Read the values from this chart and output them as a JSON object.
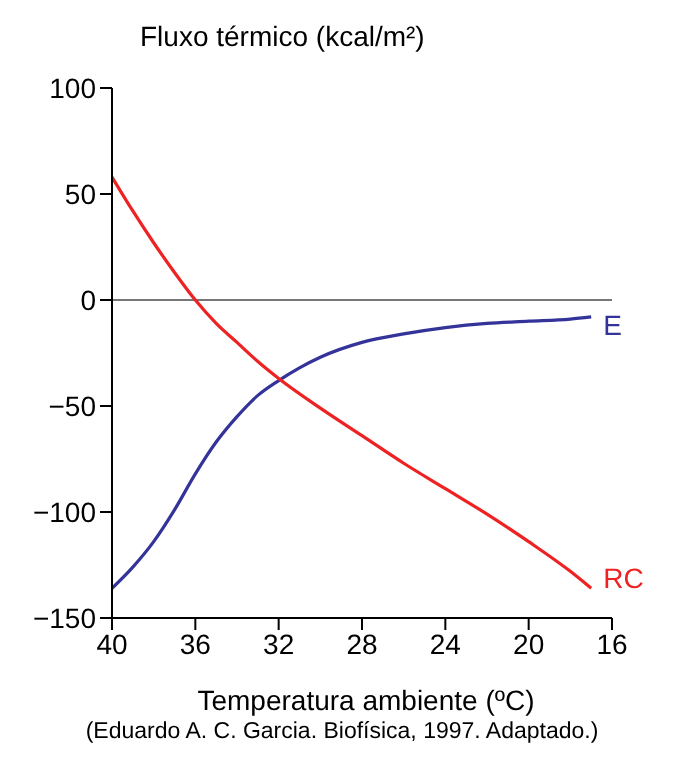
{
  "chart_data": {
    "type": "line",
    "title": "Fluxo térmico (kcal/m²)",
    "xlabel": "Temperatura ambiente (ºC)",
    "xlim": [
      40,
      16
    ],
    "xticks": [
      40,
      36,
      32,
      28,
      24,
      20,
      16
    ],
    "ylim": [
      -150,
      100
    ],
    "yticks": [
      100,
      50,
      0,
      -50,
      -100,
      -150
    ],
    "legend": false,
    "marker": "none",
    "line_style": "solid",
    "ref_lines": [
      {
        "axis": "y",
        "value": 0,
        "color": "#777777"
      }
    ],
    "series": [
      {
        "name": "E",
        "color": "#33339a",
        "x": [
          40,
          39,
          38,
          37,
          36,
          35,
          34,
          33,
          32,
          31,
          30,
          28,
          26,
          24,
          22,
          20,
          18,
          17
        ],
        "values": [
          -136,
          -126,
          -114,
          -99,
          -82,
          -67,
          -55,
          -45,
          -38,
          -32,
          -27,
          -20,
          -16,
          -13,
          -11,
          -10,
          -9,
          -8
        ]
      },
      {
        "name": "RC",
        "color": "#ee2222",
        "x": [
          40,
          39,
          38,
          37,
          36,
          35,
          34,
          33,
          32,
          30,
          28,
          26,
          24,
          22,
          20,
          18,
          17
        ],
        "values": [
          58,
          42,
          27,
          13,
          0,
          -11,
          -20,
          -29,
          -37,
          -51,
          -64,
          -77,
          -89,
          -101,
          -114,
          -128,
          -136
        ]
      }
    ],
    "annotations": [
      "(Eduardo A. C. Garcia. Biofísica, 1997. Adaptado.)"
    ]
  }
}
